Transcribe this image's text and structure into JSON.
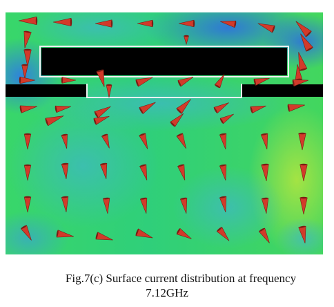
{
  "caption": {
    "line1": "Fig.7(c) Surface current distribution at frequency",
    "line2": "7.12GHz"
  },
  "colors": {
    "background": "#ffffff",
    "field_green": "#3fd66e",
    "field_blue": "#3e8fe0",
    "field_cyan": "#46c6b0",
    "field_yellow_green": "#9ee24a",
    "slot_black": "#000000",
    "arrow_red": "#d23a2a",
    "arrow_dark": "#7a1d14"
  },
  "icons": {
    "current_arrow": "red-cone-arrow-icon"
  }
}
